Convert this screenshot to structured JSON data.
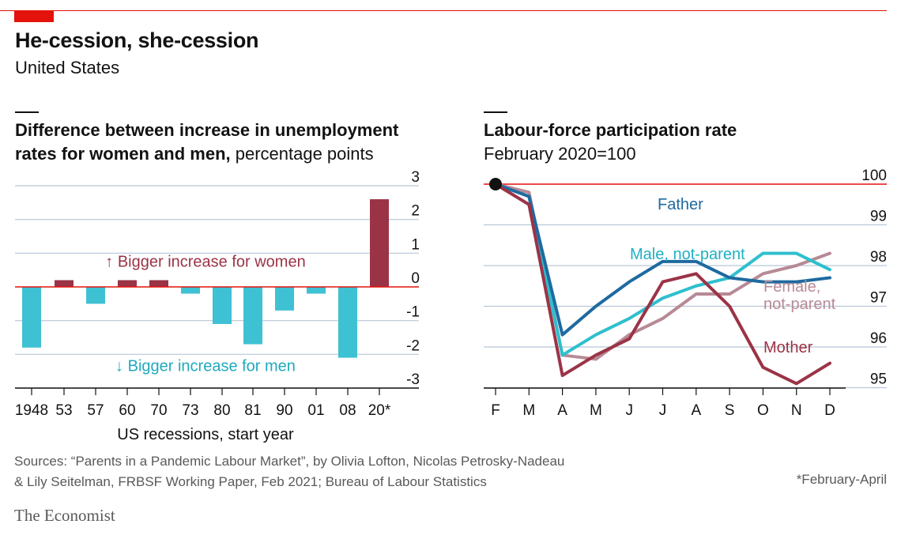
{
  "header": {
    "title": "He-cession, she-cession",
    "subtitle": "United States"
  },
  "left_panel": {
    "title_bold": "Difference between increase in unemployment rates for women and men,",
    "title_unit": " percentage points",
    "annotation_women": "↑ Bigger increase for women",
    "annotation_men": "↓ Bigger increase for men",
    "xlabel": "US recessions, start year"
  },
  "right_panel": {
    "title_bold": "Labour-force participation rate",
    "subtitle": "February 2020=100"
  },
  "footer": {
    "source_line1": "Sources: “Parents in a Pandemic Labour Market”, by Olivia Lofton, Nicolas Petrosky-Nadeau",
    "source_line2": "& Lily Seitelman, FRBSF Working Paper, Feb 2021; Bureau of Labour Statistics",
    "footnote": "*February-April",
    "brand": "The Economist"
  },
  "colors": {
    "accent_red": "#e3120b",
    "women_bar": "#9b3346",
    "men_bar": "#3ec1d3",
    "father": "#1e6aa0",
    "male_not_parent": "#2fbfce",
    "female_not_parent": "#b78a95",
    "mother": "#9b3346",
    "grid": "#b8c7d6"
  },
  "chart_data": [
    {
      "type": "bar",
      "categories": [
        "1948",
        "53",
        "57",
        "60",
        "70",
        "73",
        "80",
        "81",
        "90",
        "01",
        "08",
        "20*"
      ],
      "values": [
        -1.8,
        0.2,
        -0.5,
        0.2,
        0.2,
        -0.2,
        -1.1,
        -1.7,
        -0.7,
        -0.2,
        -2.1,
        2.6
      ],
      "ylim": [
        -3,
        3
      ],
      "yticks": [
        "3",
        "2",
        "1",
        "0",
        "-1",
        "-2",
        "-3"
      ],
      "xlabel": "US recessions, start year",
      "grid": true
    },
    {
      "type": "line",
      "x": [
        "F",
        "M",
        "A",
        "M",
        "J",
        "J",
        "A",
        "S",
        "O",
        "N",
        "D"
      ],
      "ylim": [
        95,
        100
      ],
      "yticks": [
        "100",
        "99",
        "98",
        "97",
        "96",
        "95"
      ],
      "reference_line": 100,
      "grid": true,
      "series": [
        {
          "name": "Father",
          "values": [
            100,
            99.7,
            96.3,
            97.0,
            97.6,
            98.1,
            98.1,
            97.7,
            97.6,
            97.6,
            97.7
          ]
        },
        {
          "name": "Male, not-parent",
          "values": [
            100,
            99.7,
            95.8,
            96.3,
            96.7,
            97.2,
            97.5,
            97.7,
            98.3,
            98.3,
            97.9
          ]
        },
        {
          "name": "Female, not-parent",
          "values": [
            100,
            99.8,
            95.8,
            95.7,
            96.3,
            96.7,
            97.3,
            97.3,
            97.8,
            98.0,
            98.3
          ]
        },
        {
          "name": "Mother",
          "values": [
            100,
            99.5,
            95.3,
            95.8,
            96.2,
            97.6,
            97.8,
            97.0,
            95.5,
            95.1,
            95.6
          ]
        }
      ]
    }
  ]
}
